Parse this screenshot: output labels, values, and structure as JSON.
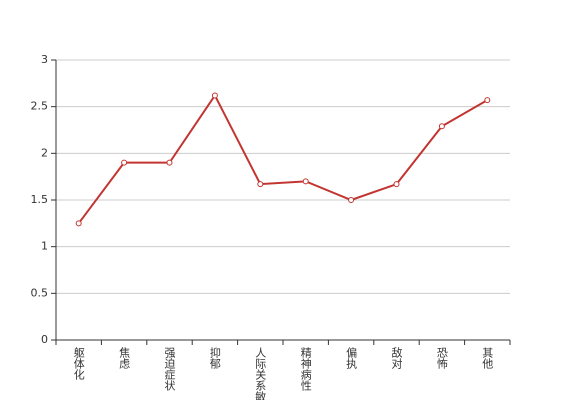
{
  "chart_data": {
    "type": "line",
    "categories": [
      "躯体化",
      "焦虑",
      "强迫症状",
      "抑郁",
      "人际关系敏感",
      "精神病性",
      "偏执",
      "敌对",
      "恐怖",
      "其他"
    ],
    "series": [
      {
        "color": "#c23531",
        "values": [
          1.25,
          1.9,
          1.9,
          2.62,
          1.67,
          1.7,
          1.5,
          1.67,
          2.29,
          2.57
        ]
      }
    ],
    "ylim": [
      0,
      3
    ],
    "yticks": [
      0,
      0.5,
      1,
      1.5,
      2,
      2.5,
      3
    ],
    "grid": true
  }
}
